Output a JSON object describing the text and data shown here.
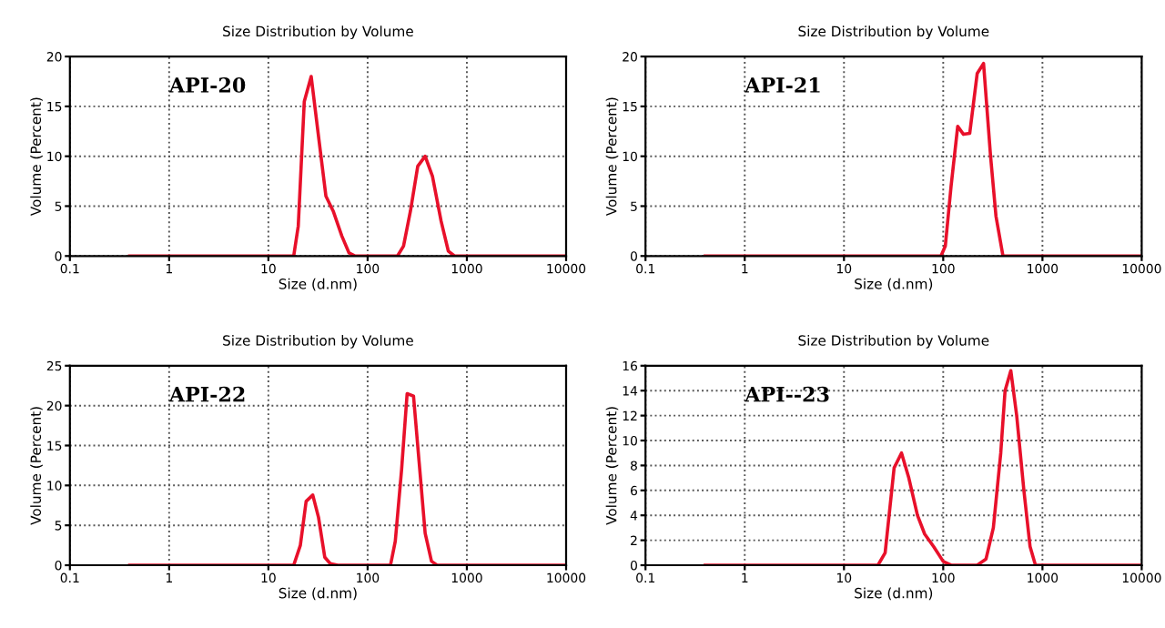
{
  "chart_data": [
    {
      "type": "line",
      "title": "Size Distribution by Volume",
      "xlabel": "Size (d.nm)",
      "ylabel": "Volume (Percent)",
      "annotations": [
        "API-20"
      ],
      "log": "x",
      "grid": true,
      "marker": "none",
      "line_style": "solid",
      "xlim": [
        0.1,
        10000
      ],
      "xticks": [
        0.1,
        1,
        10,
        100,
        1000,
        10000
      ],
      "ylim": [
        0,
        20
      ],
      "yticks": [
        0,
        5,
        10,
        15,
        20
      ],
      "series": [
        {
          "color": "#e8102a",
          "x": [
            0.4,
            18,
            20,
            23,
            27,
            32,
            38,
            45,
            55,
            65,
            75,
            200,
            230,
            270,
            320,
            380,
            450,
            550,
            650,
            750,
            10000
          ],
          "values": [
            0,
            0,
            3,
            15.5,
            18,
            12,
            6,
            4.5,
            2,
            0.3,
            0,
            0,
            1,
            4.5,
            9,
            10,
            8,
            3.5,
            0.5,
            0,
            0
          ]
        }
      ]
    },
    {
      "type": "line",
      "title": "Size Distribution by Volume",
      "xlabel": "Size (d.nm)",
      "ylabel": "Volume (Percent)",
      "annotations": [
        "API-21"
      ],
      "log": "x",
      "grid": true,
      "marker": "none",
      "line_style": "solid",
      "xlim": [
        0.1,
        10000
      ],
      "xticks": [
        0.1,
        1,
        10,
        100,
        1000,
        10000
      ],
      "ylim": [
        0,
        20
      ],
      "yticks": [
        0,
        5,
        10,
        15,
        20
      ],
      "series": [
        {
          "color": "#e8102a",
          "x": [
            0.4,
            95,
            105,
            120,
            140,
            160,
            185,
            220,
            255,
            300,
            340,
            400,
            10000
          ],
          "values": [
            0,
            0,
            1,
            7,
            13,
            12.2,
            12.3,
            18.3,
            19.3,
            10,
            4,
            0,
            0
          ]
        }
      ]
    },
    {
      "type": "line",
      "title": "Size Distribution by Volume",
      "xlabel": "Size (d.nm)",
      "ylabel": "Volume (Percent)",
      "annotations": [
        "API-22"
      ],
      "log": "x",
      "grid": true,
      "marker": "none",
      "line_style": "solid",
      "xlim": [
        0.1,
        10000
      ],
      "xticks": [
        0.1,
        1,
        10,
        100,
        1000,
        10000
      ],
      "ylim": [
        0,
        25
      ],
      "yticks": [
        0,
        5,
        10,
        15,
        20,
        25
      ],
      "series": [
        {
          "color": "#e8102a",
          "x": [
            0.4,
            18,
            21,
            24,
            28,
            32,
            37,
            42,
            50,
            170,
            190,
            220,
            250,
            290,
            330,
            380,
            440,
            500,
            10000
          ],
          "values": [
            0,
            0,
            2.5,
            8,
            8.8,
            6,
            1,
            0.2,
            0,
            0,
            3,
            12,
            21.5,
            21.2,
            13,
            4,
            0.5,
            0,
            0
          ]
        }
      ]
    },
    {
      "type": "line",
      "title": "Size Distribution by Volume",
      "xlabel": "Size (d.nm)",
      "ylabel": "Volume (Percent)",
      "annotations": [
        "API--23"
      ],
      "log": "x",
      "grid": true,
      "marker": "none",
      "line_style": "solid",
      "xlim": [
        0.1,
        10000
      ],
      "xticks": [
        0.1,
        1,
        10,
        100,
        1000,
        10000
      ],
      "ylim": [
        0,
        16
      ],
      "yticks": [
        0,
        2,
        4,
        6,
        8,
        10,
        12,
        14,
        16
      ],
      "series": [
        {
          "color": "#e8102a",
          "x": [
            0.4,
            22,
            26,
            32,
            38,
            45,
            55,
            65,
            80,
            100,
            120,
            220,
            270,
            320,
            380,
            420,
            480,
            550,
            650,
            750,
            850,
            10000
          ],
          "values": [
            0,
            0,
            1,
            7.8,
            9,
            7,
            4,
            2.5,
            1.5,
            0.3,
            0,
            0,
            0.5,
            3,
            9,
            14,
            15.6,
            12,
            6,
            1.5,
            0,
            0
          ]
        }
      ]
    }
  ]
}
